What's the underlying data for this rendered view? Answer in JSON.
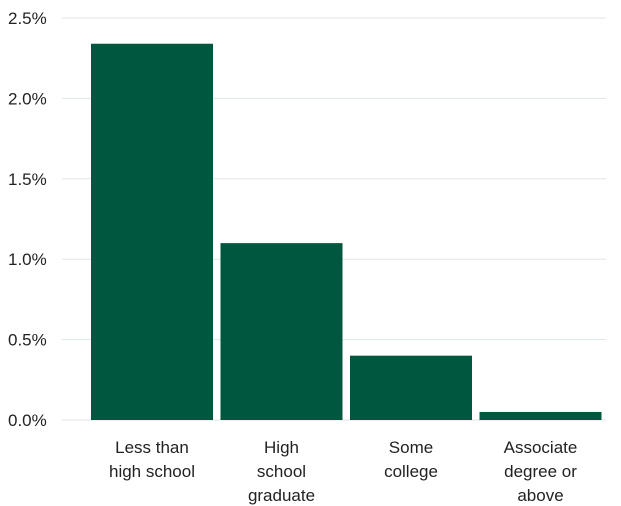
{
  "chart_data": {
    "type": "bar",
    "categories": [
      [
        "Less than",
        "high school"
      ],
      [
        "High",
        "school",
        "graduate"
      ],
      [
        "Some",
        "college"
      ],
      [
        "Associate",
        "degree or",
        "above"
      ]
    ],
    "values": [
      2.34,
      1.1,
      0.4,
      0.05
    ],
    "yticks": [
      "0.0%",
      "0.5%",
      "1.0%",
      "1.5%",
      "2.0%",
      "2.5%"
    ],
    "ytick_values": [
      0,
      0.5,
      1.0,
      1.5,
      2.0,
      2.5
    ],
    "ylim": [
      0,
      2.5
    ],
    "title": "",
    "xlabel": "",
    "ylabel": "",
    "grid": true,
    "bar_color": "#00573f",
    "grid_color": "#dde6ea"
  }
}
